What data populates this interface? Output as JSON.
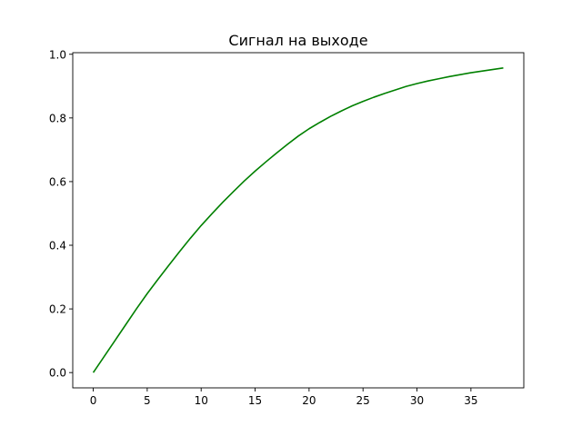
{
  "chart_data": {
    "type": "line",
    "title": "Сигнал на выходе",
    "xlabel": "",
    "ylabel": "",
    "xlim": [
      -1.9,
      39.9
    ],
    "ylim": [
      -0.048,
      1.005
    ],
    "xticks": [
      0,
      5,
      10,
      15,
      20,
      25,
      30,
      35
    ],
    "yticks": [
      0.0,
      0.2,
      0.4,
      0.6,
      0.8,
      1.0
    ],
    "xtick_labels": [
      "0",
      "5",
      "10",
      "15",
      "20",
      "25",
      "30",
      "35"
    ],
    "ytick_labels": [
      "0.0",
      "0.2",
      "0.4",
      "0.6",
      "0.8",
      "1.0"
    ],
    "grid": false,
    "series": [
      {
        "color": "#008000",
        "x": [
          0,
          1,
          2,
          3,
          4,
          5,
          6,
          7,
          8,
          9,
          10,
          11,
          12,
          13,
          14,
          15,
          16,
          17,
          18,
          19,
          20,
          21,
          22,
          23,
          24,
          25,
          26,
          27,
          28,
          29,
          30,
          31,
          32,
          33,
          34,
          35,
          36,
          37,
          38
        ],
        "y": [
          0,
          0.05,
          0.1,
          0.15,
          0.2,
          0.248,
          0.293,
          0.337,
          0.38,
          0.422,
          0.462,
          0.499,
          0.535,
          0.569,
          0.602,
          0.633,
          0.662,
          0.69,
          0.717,
          0.743,
          0.766,
          0.786,
          0.805,
          0.822,
          0.838,
          0.852,
          0.865,
          0.877,
          0.888,
          0.899,
          0.908,
          0.916,
          0.923,
          0.93,
          0.936,
          0.942,
          0.947,
          0.952,
          0.957
        ]
      }
    ]
  }
}
